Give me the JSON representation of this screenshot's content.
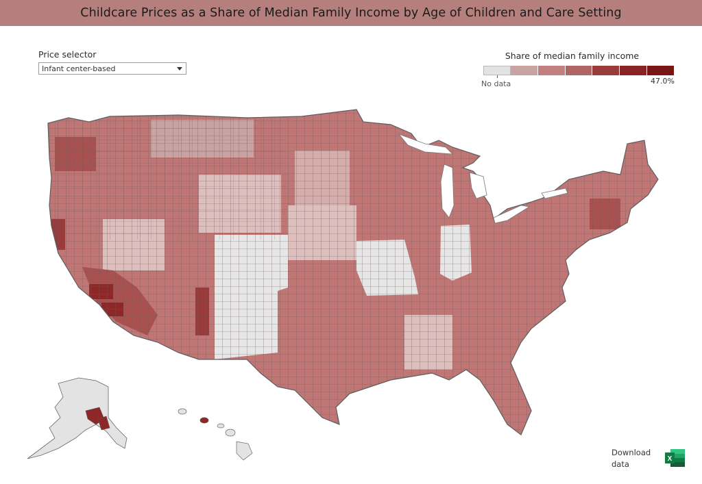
{
  "title": "Childcare Prices as a Share of Median Family Income by Age of Children and Care Setting",
  "selector": {
    "label": "Price selector",
    "value": "Infant center-based",
    "icon": "chevron-down-icon"
  },
  "legend": {
    "title": "Share of median family income",
    "no_data_label": "No data",
    "max_label": "47.0%",
    "colors": [
      "#e3e3e3",
      "#c9a3a2",
      "#c1807f",
      "#ae6563",
      "#9a3b3b",
      "#8a2424",
      "#7a1515"
    ]
  },
  "map": {
    "colors": {
      "no_data": "#e6e6e6",
      "base": "#c07675",
      "light": "#ddbfbe",
      "dark": "#9c3535",
      "darkest": "#861c1c",
      "border": "#6a6a6a"
    },
    "regions": {
      "no_data": [
        "Colorado",
        "Missouri",
        "Indiana",
        "Alaska (most)",
        "Hawaii (most)"
      ],
      "light": [
        "Nevada (parts)",
        "Utah (parts)",
        "Wyoming (parts)",
        "Nebraska",
        "Kansas (west)",
        "Iowa (west)",
        "Mississippi",
        "Alabama (parts)"
      ]
    }
  },
  "download": {
    "label": "Download data",
    "icon": "excel-icon"
  }
}
